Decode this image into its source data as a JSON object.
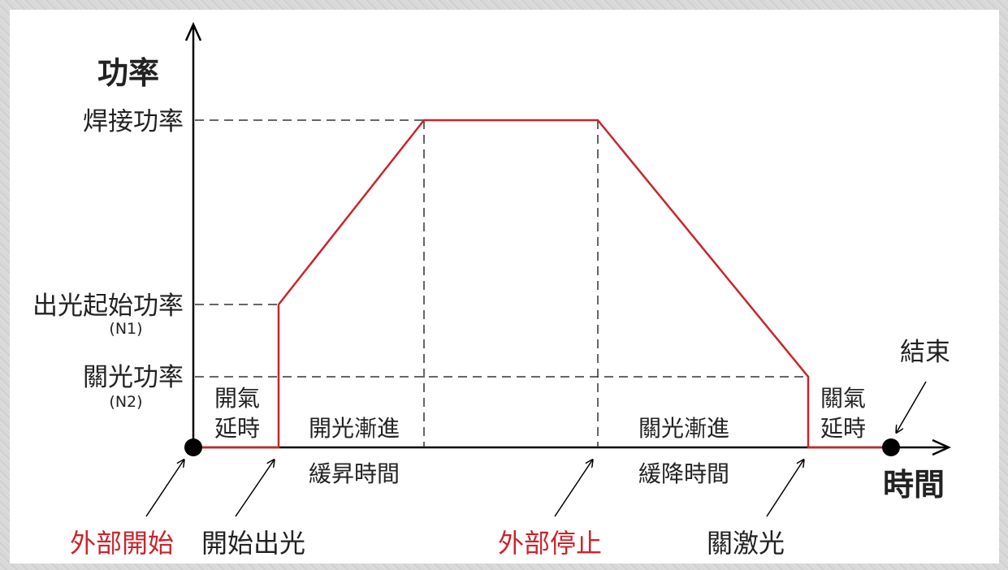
{
  "colors": {
    "power_curve": "#c9252c",
    "axis": "#000000",
    "guide": "#333333",
    "external_event": "#c9252c"
  },
  "axes": {
    "y_label": "功率",
    "x_label": "時間"
  },
  "levels": {
    "weld_power": "焊接功率",
    "start_power": "出光起始功率",
    "start_power_code": "(N1)",
    "off_power": "關光功率",
    "off_power_code": "(N2)"
  },
  "phases": {
    "gas_on_delay_1": "開氣",
    "gas_on_delay_2": "延時",
    "ramp_up": "開光漸進",
    "ramp_up_time": "緩昇時間",
    "ramp_down": "關光漸進",
    "ramp_down_time": "緩降時間",
    "gas_off_delay_1": "關氣",
    "gas_off_delay_2": "延時"
  },
  "events": {
    "external_start": "外部開始",
    "start_emission": "開始出光",
    "external_stop": "外部停止",
    "laser_off": "關激光",
    "end": "結束"
  }
}
